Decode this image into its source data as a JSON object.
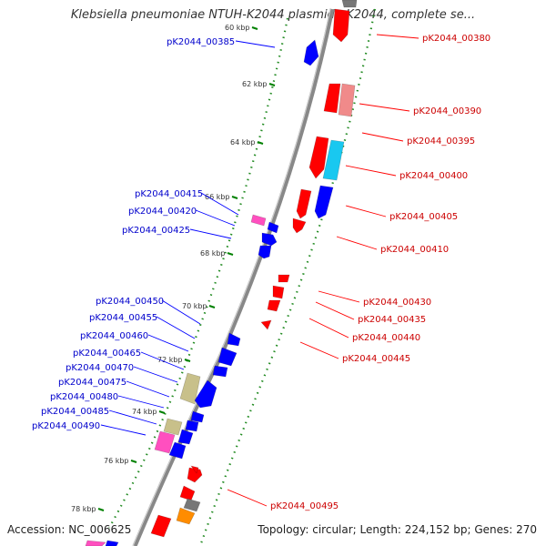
{
  "title": "Klebsiella pneumoniae NTUH-K2044 plasmid pK2044, complete se...",
  "footer": {
    "accession": "Accession: NC_006625",
    "topology": "Topology: circular; Length: 224,152 bp; Genes: 270"
  },
  "colors": {
    "forward": "#ff0000",
    "reverse": "#0000ff",
    "forward_label": "#cc0000",
    "reverse_label": "#0000cc",
    "backbone": "#888888",
    "gc_dots": "#228b22",
    "ticks": "#008000",
    "khaki": "#c8c08a",
    "pink": "#ff4fbf",
    "pink_light": "#f08a8a",
    "cyan": "#19c8f0",
    "orange": "#ff8c00",
    "gray": "#777777"
  },
  "kbp_ticks": [
    "60 kbp",
    "62 kbp",
    "64 kbp",
    "66 kbp",
    "68 kbp",
    "70 kbp",
    "72 kbp",
    "74 kbp",
    "76 kbp",
    "78 kbp"
  ],
  "gene_labels_right": [
    "pK2044_00380",
    "pK2044_00390",
    "pK2044_00395",
    "pK2044_00400",
    "pK2044_00405",
    "pK2044_00410",
    "pK2044_00430",
    "pK2044_00435",
    "pK2044_00440",
    "pK2044_00445",
    "pK2044_00495"
  ],
  "gene_labels_left": [
    "pK2044_00385",
    "pK2044_00415",
    "pK2044_00420",
    "pK2044_00425",
    "pK2044_00450",
    "pK2044_00455",
    "pK2044_00460",
    "pK2044_00465",
    "pK2044_00470",
    "pK2044_00475",
    "pK2044_00480",
    "pK2044_00485",
    "pK2044_00490"
  ]
}
